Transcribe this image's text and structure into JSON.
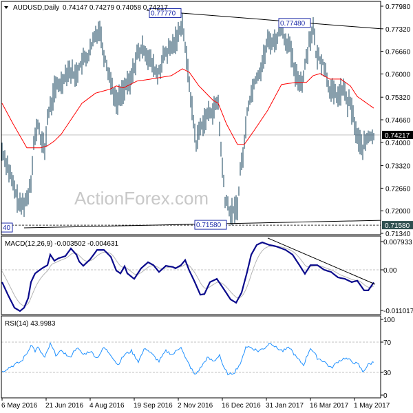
{
  "header": {
    "symbol": "AUDUSD,Daily",
    "ohlc": "0.74147 0.74279 0.74058 0.74217"
  },
  "watermark": "ActionForex.com",
  "macd_header": "MACD(12,26,9) -0.003502 -0.004631",
  "rsi_header": "RSI(14) 43.9983",
  "colors": {
    "bars": "#123f5a",
    "ma": "#ff0000",
    "macd": "#0a0a8c",
    "signal": "#b4b4b4",
    "current_price_bg": "#000000",
    "level_bg": "#2f4f4f",
    "label_border": "#1c2aa8"
  },
  "chart_data": {
    "type": "line",
    "title": "AUDUSD,Daily",
    "price": {
      "open": 0.74147,
      "high": 0.74279,
      "low": 0.74058,
      "close": 0.74217,
      "samples": [
        [
          0,
          0.7374
        ],
        [
          4,
          0.7333
        ],
        [
          8,
          0.7273
        ],
        [
          13,
          0.7212
        ],
        [
          18,
          0.7233
        ],
        [
          21,
          0.7293
        ],
        [
          23,
          0.7394
        ],
        [
          26,
          0.7454
        ],
        [
          28,
          0.7414
        ],
        [
          31,
          0.7374
        ],
        [
          33,
          0.7474
        ],
        [
          36,
          0.7514
        ],
        [
          38,
          0.7555
        ],
        [
          43,
          0.7575
        ],
        [
          48,
          0.7615
        ],
        [
          53,
          0.7595
        ],
        [
          58,
          0.7635
        ],
        [
          63,
          0.7655
        ],
        [
          68,
          0.7716
        ],
        [
          71,
          0.7736
        ],
        [
          73,
          0.7675
        ],
        [
          78,
          0.7595
        ],
        [
          83,
          0.7514
        ],
        [
          88,
          0.7555
        ],
        [
          93,
          0.7575
        ],
        [
          98,
          0.7655
        ],
        [
          103,
          0.7675
        ],
        [
          108,
          0.7635
        ],
        [
          113,
          0.7595
        ],
        [
          118,
          0.7655
        ],
        [
          123,
          0.7675
        ],
        [
          128,
          0.7716
        ],
        [
          131,
          0.7756
        ],
        [
          133,
          0.7675
        ],
        [
          136,
          0.7575
        ],
        [
          138,
          0.7494
        ],
        [
          141,
          0.7394
        ],
        [
          143,
          0.7434
        ],
        [
          148,
          0.7474
        ],
        [
          153,
          0.7494
        ],
        [
          157,
          0.7514
        ],
        [
          159,
          0.7374
        ],
        [
          162,
          0.7233
        ],
        [
          166,
          0.7192
        ],
        [
          171,
          0.7212
        ],
        [
          173,
          0.7313
        ],
        [
          176,
          0.7394
        ],
        [
          178,
          0.7494
        ],
        [
          183,
          0.7575
        ],
        [
          188,
          0.7615
        ],
        [
          193,
          0.7695
        ],
        [
          198,
          0.7695
        ],
        [
          203,
          0.7736
        ],
        [
          206,
          0.7695
        ],
        [
          208,
          0.7695
        ],
        [
          213,
          0.7595
        ],
        [
          218,
          0.7575
        ],
        [
          223,
          0.7695
        ],
        [
          226,
          0.7736
        ],
        [
          228,
          0.7655
        ],
        [
          233,
          0.7635
        ],
        [
          238,
          0.7555
        ],
        [
          243,
          0.7534
        ],
        [
          248,
          0.7555
        ],
        [
          251,
          0.7514
        ],
        [
          253,
          0.7514
        ],
        [
          258,
          0.7414
        ],
        [
          262,
          0.7384
        ],
        [
          266,
          0.7414
        ],
        [
          270,
          0.7422
        ]
      ],
      "ma_samples": [
        [
          0,
          0.7514
        ],
        [
          8,
          0.7454
        ],
        [
          18,
          0.7384
        ],
        [
          28,
          0.7384
        ],
        [
          33,
          0.739
        ],
        [
          38,
          0.7404
        ],
        [
          43,
          0.7424
        ],
        [
          48,
          0.7454
        ],
        [
          53,
          0.7484
        ],
        [
          58,
          0.7514
        ],
        [
          68,
          0.7544
        ],
        [
          78,
          0.7555
        ],
        [
          83,
          0.7565
        ],
        [
          88,
          0.7559
        ],
        [
          98,
          0.7579
        ],
        [
          108,
          0.7585
        ],
        [
          123,
          0.7595
        ],
        [
          131,
          0.7615
        ],
        [
          136,
          0.7605
        ],
        [
          143,
          0.7565
        ],
        [
          153,
          0.7524
        ],
        [
          157,
          0.7514
        ],
        [
          163,
          0.7454
        ],
        [
          171,
          0.7394
        ],
        [
          176,
          0.7394
        ],
        [
          183,
          0.7434
        ],
        [
          193,
          0.7494
        ],
        [
          203,
          0.7569
        ],
        [
          213,
          0.7575
        ],
        [
          221,
          0.7575
        ],
        [
          226,
          0.7595
        ],
        [
          231,
          0.7601
        ],
        [
          238,
          0.7585
        ],
        [
          246,
          0.7585
        ],
        [
          253,
          0.7565
        ],
        [
          258,
          0.7534
        ],
        [
          270,
          0.75
        ]
      ],
      "axis_ticks": [
        "0.77980",
        "0.77320",
        "0.76660",
        "0.76000",
        "0.75320",
        "0.74660",
        "0.74000",
        "0.73320",
        "0.72660",
        "0.72000",
        "0.71340"
      ],
      "current_price_label": "0.74217",
      "level_label": "0.71580",
      "level": 0.7158,
      "upper_trendline": [
        [
          105,
          0.7786
        ],
        [
          275,
          0.7732
        ]
      ],
      "lower_trendline": [
        [
          16,
          0.715
        ],
        [
          275,
          0.7172
        ]
      ],
      "annotations": [
        {
          "text": "0.77770",
          "day": 107,
          "price": 0.7777
        },
        {
          "text": "0.77480",
          "day": 201,
          "price": 0.7748
        },
        {
          "text": "0.71580",
          "day": 140,
          "price": 0.7158
        },
        {
          "text": "40",
          "day": 0,
          "price": 0.715
        }
      ]
    },
    "macd": {
      "params": "12,26,9",
      "value": -0.003502,
      "signal": -0.004631,
      "samples": [
        [
          0,
          -0.0034
        ],
        [
          4,
          -0.0067
        ],
        [
          9,
          -0.0105
        ],
        [
          13,
          -0.0114
        ],
        [
          16,
          -0.0105
        ],
        [
          19,
          -0.0078
        ],
        [
          21,
          -0.0034
        ],
        [
          24,
          -0.001
        ],
        [
          29,
          0.0004
        ],
        [
          33,
          0.0013
        ],
        [
          35,
          0.0042
        ],
        [
          38,
          0.0025
        ],
        [
          41,
          0.0032
        ],
        [
          46,
          0.0038
        ],
        [
          50,
          0.0059
        ],
        [
          54,
          0.0042
        ],
        [
          56,
          0.0023
        ],
        [
          59,
          0.0011
        ],
        [
          64,
          0.0029
        ],
        [
          69,
          0.0055
        ],
        [
          74,
          0.0055
        ],
        [
          79,
          0.0036
        ],
        [
          83,
          -0.0002
        ],
        [
          86,
          -0.001
        ],
        [
          89,
          0.001
        ],
        [
          91,
          -0.001
        ],
        [
          96,
          -0.0025
        ],
        [
          101,
          0.0004
        ],
        [
          106,
          0.0021
        ],
        [
          110,
          0.0013
        ],
        [
          114,
          -0.0006
        ],
        [
          119,
          0.0011
        ],
        [
          124,
          0.0008
        ],
        [
          126,
          0.0004
        ],
        [
          130,
          0.0013
        ],
        [
          133,
          0.0027
        ],
        [
          136,
          -0.0002
        ],
        [
          140,
          -0.0034
        ],
        [
          144,
          -0.0069
        ],
        [
          147,
          -0.0067
        ],
        [
          151,
          -0.0034
        ],
        [
          156,
          -0.0025
        ],
        [
          161,
          -0.0053
        ],
        [
          166,
          -0.0082
        ],
        [
          170,
          -0.0091
        ],
        [
          174,
          -0.0063
        ],
        [
          178,
          -0.0006
        ],
        [
          181,
          0.0042
        ],
        [
          185,
          0.0069
        ],
        [
          189,
          0.0076
        ],
        [
          194,
          0.0069
        ],
        [
          199,
          0.0065
        ],
        [
          206,
          0.0055
        ],
        [
          211,
          0.0042
        ],
        [
          216,
          0.0013
        ],
        [
          220,
          -0.0011
        ],
        [
          224,
          0.0013
        ],
        [
          229,
          0.0013
        ],
        [
          234,
          0
        ],
        [
          239,
          -0.0006
        ],
        [
          244,
          -0.0021
        ],
        [
          249,
          -0.0025
        ],
        [
          254,
          -0.0034
        ],
        [
          258,
          -0.003
        ],
        [
          263,
          -0.0057
        ],
        [
          266,
          -0.0057
        ],
        [
          270,
          -0.0035
        ]
      ],
      "axis_ticks": [
        "0.007933",
        "0.00",
        "-0.011017"
      ],
      "trendline": [
        [
          193,
          0.0088
        ],
        [
          271,
          -0.004
        ]
      ]
    },
    "rsi": {
      "period": 14,
      "value": 43.9983,
      "samples": [
        [
          0,
          30.9
        ],
        [
          4,
          35.5
        ],
        [
          9,
          40
        ],
        [
          14,
          44.5
        ],
        [
          19,
          58.2
        ],
        [
          21,
          67.3
        ],
        [
          24,
          58.2
        ],
        [
          26,
          62.7
        ],
        [
          31,
          49.1
        ],
        [
          35,
          67.3
        ],
        [
          39,
          53.6
        ],
        [
          44,
          58.2
        ],
        [
          49,
          49.1
        ],
        [
          54,
          62.7
        ],
        [
          59,
          53.6
        ],
        [
          64,
          58.2
        ],
        [
          69,
          49.1
        ],
        [
          74,
          62.7
        ],
        [
          79,
          53.6
        ],
        [
          84,
          40
        ],
        [
          89,
          53.6
        ],
        [
          94,
          58.2
        ],
        [
          99,
          44.5
        ],
        [
          104,
          62.7
        ],
        [
          109,
          53.6
        ],
        [
          114,
          44.5
        ],
        [
          119,
          58.2
        ],
        [
          124,
          53.6
        ],
        [
          130,
          64.5
        ],
        [
          133,
          49.1
        ],
        [
          136,
          40
        ],
        [
          140,
          26.4
        ],
        [
          144,
          35.5
        ],
        [
          149,
          49.1
        ],
        [
          154,
          44.5
        ],
        [
          158,
          53.6
        ],
        [
          161,
          35.5
        ],
        [
          165,
          26.4
        ],
        [
          169,
          30.9
        ],
        [
          174,
          44.5
        ],
        [
          177,
          64.5
        ],
        [
          181,
          62.7
        ],
        [
          186,
          58.2
        ],
        [
          191,
          62.7
        ],
        [
          195,
          70
        ],
        [
          199,
          62.7
        ],
        [
          204,
          58.2
        ],
        [
          209,
          62.7
        ],
        [
          214,
          49.1
        ],
        [
          219,
          40
        ],
        [
          224,
          62.7
        ],
        [
          229,
          49.1
        ],
        [
          234,
          44.5
        ],
        [
          239,
          35.5
        ],
        [
          244,
          44.5
        ],
        [
          249,
          49.1
        ],
        [
          254,
          44.5
        ],
        [
          259,
          40
        ],
        [
          262,
          30.9
        ],
        [
          266,
          40
        ],
        [
          270,
          44
        ]
      ],
      "axis_ticks": [
        "100",
        "70",
        "30",
        "0"
      ],
      "levels": [
        70,
        30
      ]
    },
    "x_tick_labels": [
      "6 May 2016",
      "21 Jun 2016",
      "4 Aug 2016",
      "19 Sep 2016",
      "2 Nov 2016",
      "16 Dec 2016",
      "31 Jan 2017",
      "16 Mar 2017",
      "1 May 2017"
    ],
    "x_tick_days": [
      0,
      32,
      64,
      96,
      128,
      160,
      192,
      224,
      256
    ]
  }
}
